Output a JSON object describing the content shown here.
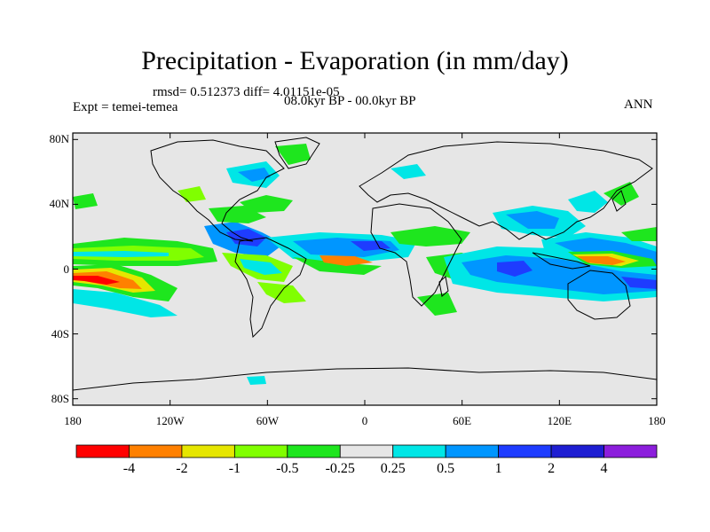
{
  "title": "Precipitation - Evaporation (in mm/day)",
  "stats": "rmsd= 0.512373 diff= 4.01151e-05",
  "period": "08.0kyr BP - 00.0kyr BP",
  "experiment": "Expt = temei-temea",
  "season": "ANN",
  "x_ticks": [
    "180",
    "120W",
    "60W",
    "0",
    "60E",
    "120E",
    "180"
  ],
  "y_ticks": [
    "80N",
    "40N",
    "0",
    "40S",
    "80S"
  ],
  "y_tick_values": [
    80,
    40,
    0,
    -40,
    -80
  ],
  "x_tick_values": [
    -180,
    -120,
    -60,
    0,
    60,
    120,
    180
  ],
  "colorbar": {
    "labels": [
      "-4",
      "-2",
      "-1",
      "-0.5",
      "-0.25",
      "0.25",
      "0.5",
      "1",
      "2",
      "4"
    ],
    "colors": [
      "#ff0000",
      "#ff8000",
      "#e6e600",
      "#80ff00",
      "#1ee61e",
      "#e6e6e6",
      "#00e6e6",
      "#0096ff",
      "#1e3cff",
      "#1e1ed2",
      "#8c1edc"
    ]
  },
  "colors": {
    "ocean_neutral": "#e6e6e6",
    "coast": "#000000"
  }
}
